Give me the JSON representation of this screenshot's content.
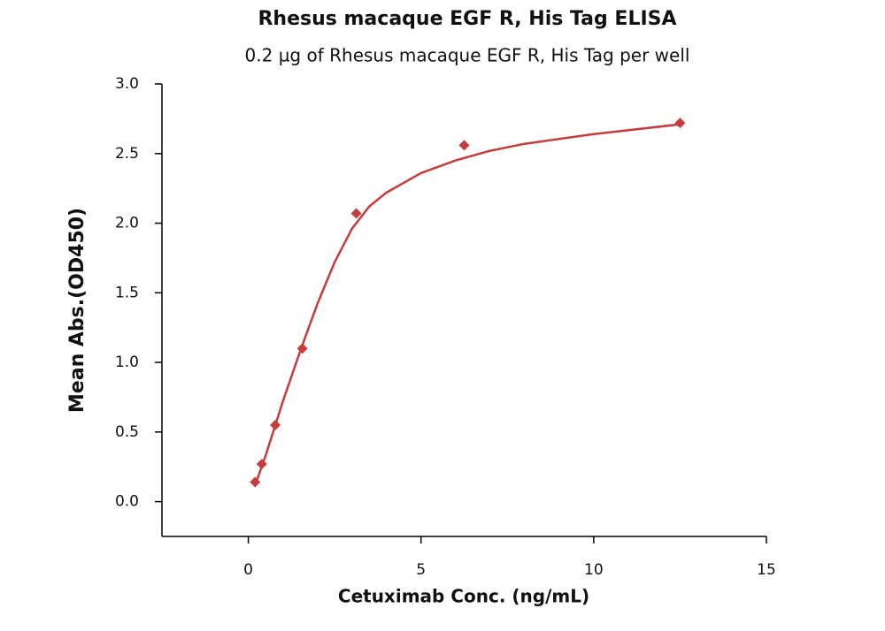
{
  "chart_data": {
    "type": "scatter",
    "title": "Rhesus macaque EGF R, His Tag ELISA",
    "subtitle": "0.2 µg of Rhesus macaque EGF R, His Tag per well",
    "x_label": "Cetuximab Conc. (ng/mL)",
    "y_label": "Mean Abs.(OD450)",
    "xlim": [
      -2.5,
      15
    ],
    "ylim": [
      -0.25,
      3.0
    ],
    "xticks": [
      0,
      5,
      10,
      15
    ],
    "yticks": [
      {
        "value": 0,
        "label": "0.0"
      },
      {
        "value": 0.5,
        "label": "0.5"
      },
      {
        "value": 1,
        "label": "1.0"
      },
      {
        "value": 1.5,
        "label": "1.5"
      },
      {
        "value": 2,
        "label": "2.0"
      },
      {
        "value": 2.5,
        "label": "2.5"
      },
      {
        "value": 3,
        "label": "3.0"
      }
    ],
    "points": {
      "color": "#c43c3c",
      "x": [
        0.195,
        0.39,
        0.78,
        1.5625,
        3.125,
        6.25,
        12.5
      ],
      "y": [
        0.14,
        0.27,
        0.55,
        1.1,
        2.07,
        2.56,
        2.72
      ]
    },
    "fit": {
      "color": "#c43c3c",
      "x": [
        0.2,
        0.5,
        1,
        1.5,
        2,
        2.5,
        3,
        3.5,
        4,
        5,
        6,
        7,
        8,
        10,
        12.5
      ],
      "y": [
        0.12,
        0.33,
        0.72,
        1.08,
        1.42,
        1.72,
        1.96,
        2.12,
        2.22,
        2.36,
        2.45,
        2.52,
        2.57,
        2.64,
        2.71
      ]
    }
  }
}
